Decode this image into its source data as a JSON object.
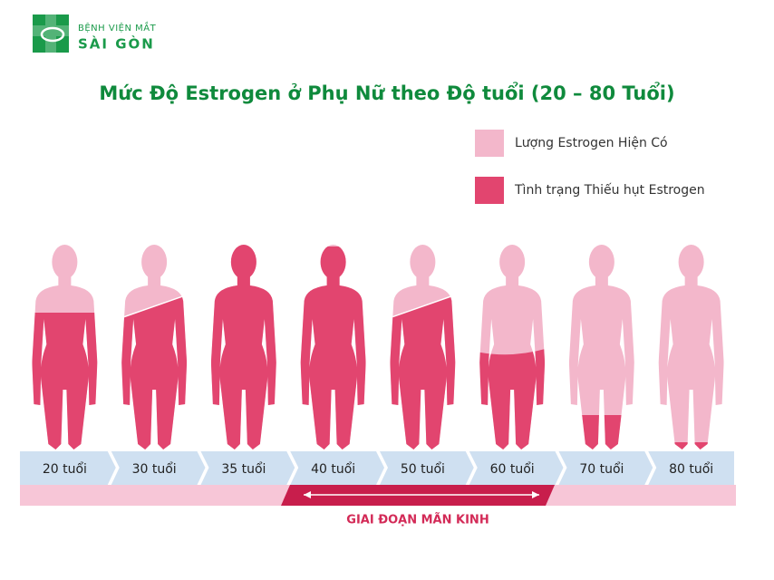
{
  "logo": {
    "top": "BỆNH VIỆN MẮT",
    "name": "SÀI GÒN"
  },
  "title": "Mức Độ Estrogen ở Phụ Nữ theo Độ tuổi (20 – 80 Tuổi)",
  "legend": [
    "Lượng Estrogen Hiện Có",
    "Tình trạng Thiếu hụt Estrogen"
  ],
  "ages": [
    "20 tuổi",
    "30  tuổi",
    "35 tuổi",
    "40 tuổi",
    "50 tuổi",
    "60 tuổi",
    "70 tuổi",
    "80 tuổi"
  ],
  "phase": "GIAI ĐOẠN MÃN KINH"
}
